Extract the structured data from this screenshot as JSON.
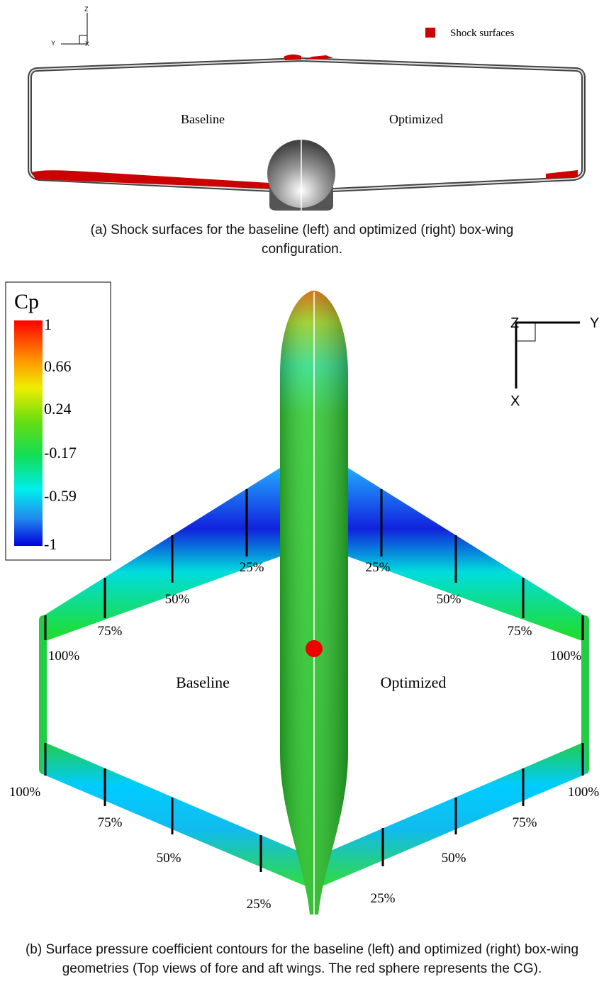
{
  "panel_a": {
    "axes": {
      "z": "Z",
      "y": "Y",
      "x": "X"
    },
    "legend": "Shock surfaces",
    "labels": {
      "left": "Baseline",
      "right": "Optimized"
    },
    "caption": "(a) Shock surfaces for the baseline (left) and optimized (right) box-wing configuration."
  },
  "panel_b": {
    "colorbar": {
      "title": "Cp",
      "ticks": [
        "1",
        "0.66",
        "0.24",
        "-0.17",
        "-0.59",
        "-1"
      ]
    },
    "axes": {
      "z": "Z",
      "y": "Y",
      "x": "X"
    },
    "labels": {
      "left": "Baseline",
      "right": "Optimized"
    },
    "stations": {
      "fore_left": [
        "25%",
        "50%",
        "75%",
        "100%"
      ],
      "fore_right": [
        "25%",
        "50%",
        "75%",
        "100%"
      ],
      "aft_left": [
        "100%",
        "75%",
        "50%",
        "25%"
      ],
      "aft_right": [
        "100%",
        "75%",
        "50%",
        "25%"
      ]
    },
    "caption": "(b) Surface pressure coefficient contours for the baseline (left) and optimized (right) box-wing geometries (Top views of fore and aft wings. The red sphere represents the CG)."
  }
}
